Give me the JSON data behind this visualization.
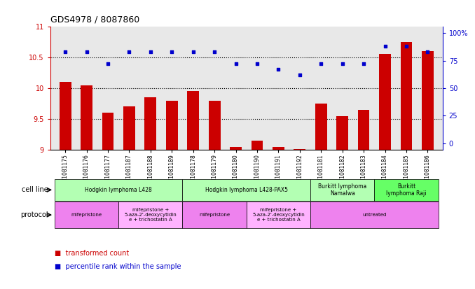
{
  "title": "GDS4978 / 8087860",
  "samples": [
    "GSM1081175",
    "GSM1081176",
    "GSM1081177",
    "GSM1081187",
    "GSM1081188",
    "GSM1081189",
    "GSM1081178",
    "GSM1081179",
    "GSM1081180",
    "GSM1081190",
    "GSM1081191",
    "GSM1081192",
    "GSM1081181",
    "GSM1081182",
    "GSM1081183",
    "GSM1081184",
    "GSM1081185",
    "GSM1081186"
  ],
  "bar_values": [
    10.1,
    10.05,
    9.6,
    9.7,
    9.85,
    9.8,
    9.95,
    9.8,
    9.05,
    9.15,
    9.05,
    9.02,
    9.75,
    9.55,
    9.65,
    10.55,
    10.75,
    10.6
  ],
  "dot_values": [
    83,
    83,
    72,
    83,
    83,
    83,
    83,
    83,
    72,
    72,
    67,
    62,
    72,
    72,
    72,
    88,
    88,
    83
  ],
  "ylim": [
    9.0,
    11.0
  ],
  "yticks_left": [
    9,
    9.5,
    10,
    10.5,
    11
  ],
  "yticks_right": [
    0,
    25,
    50,
    75,
    100
  ],
  "bar_color": "#CC0000",
  "dot_color": "#0000CC",
  "bg_color": "#e8e8e8",
  "cell_line_groups": [
    {
      "label": "Hodgkin lymphoma L428",
      "start": 0,
      "end": 5,
      "color": "#b3ffb3"
    },
    {
      "label": "Hodgkin lymphoma L428-PAX5",
      "start": 6,
      "end": 11,
      "color": "#b3ffb3"
    },
    {
      "label": "Burkitt lymphoma\nNamalwa",
      "start": 12,
      "end": 14,
      "color": "#b3ffb3"
    },
    {
      "label": "Burkitt\nlymphoma Raji",
      "start": 15,
      "end": 17,
      "color": "#66ff66"
    }
  ],
  "protocol_groups": [
    {
      "label": "mifepristone",
      "start": 0,
      "end": 2,
      "color": "#ee82ee"
    },
    {
      "label": "mifepristone +\n5-aza-2'-deoxycytidin\ne + trichostatin A",
      "start": 3,
      "end": 5,
      "color": "#ffb3ff"
    },
    {
      "label": "mifepristone",
      "start": 6,
      "end": 8,
      "color": "#ee82ee"
    },
    {
      "label": "mifepristone +\n5-aza-2'-deoxycytidin\ne + trichostatin A",
      "start": 9,
      "end": 11,
      "color": "#ffb3ff"
    },
    {
      "label": "untreated",
      "start": 12,
      "end": 17,
      "color": "#ee82ee"
    }
  ],
  "legend_bar_label": "transformed count",
  "legend_dot_label": "percentile rank within the sample",
  "grid_dotted_values": [
    9.5,
    10.0,
    10.5
  ]
}
